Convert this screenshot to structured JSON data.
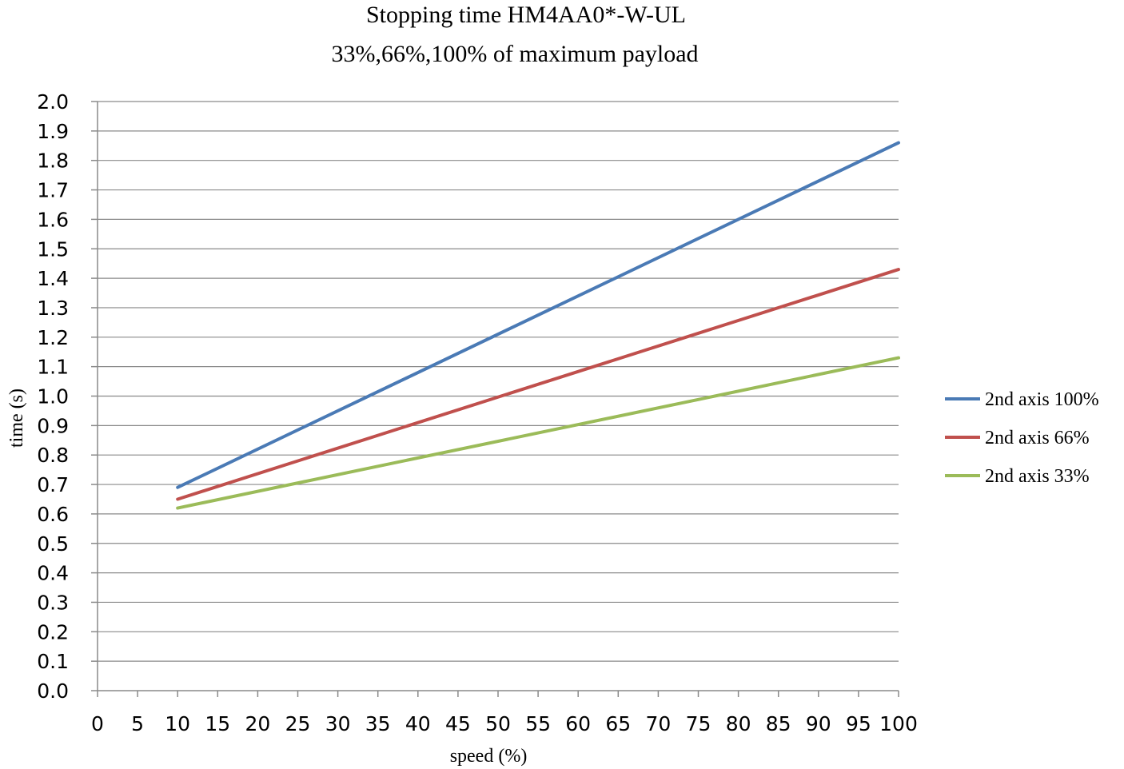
{
  "chart_data": {
    "type": "line",
    "title": "Stopping time HM4AA0*-W-UL",
    "subtitle": "33%,66%,100% of maximum payload",
    "xlabel": "speed (%)",
    "ylabel": "time (s)",
    "xlim": [
      0,
      100
    ],
    "ylim": [
      0.0,
      2.0
    ],
    "x_ticks": [
      "0",
      "5",
      "10",
      "15",
      "20",
      "25",
      "30",
      "35",
      "40",
      "45",
      "50",
      "55",
      "60",
      "65",
      "70",
      "75",
      "80",
      "85",
      "90",
      "95",
      "100"
    ],
    "y_ticks": [
      "0.0",
      "0.1",
      "0.2",
      "0.3",
      "0.4",
      "0.5",
      "0.6",
      "0.7",
      "0.8",
      "0.9",
      "1.0",
      "1.1",
      "1.2",
      "1.3",
      "1.4",
      "1.5",
      "1.6",
      "1.7",
      "1.8",
      "1.9",
      "2.0"
    ],
    "grid": "horizontal",
    "legend_position": "right",
    "series": [
      {
        "name": "2nd axis 100%",
        "color": "#4a7ab5",
        "x": [
          10,
          100
        ],
        "y": [
          0.69,
          1.86
        ]
      },
      {
        "name": "2nd axis 66%",
        "color": "#c0504d",
        "x": [
          10,
          100
        ],
        "y": [
          0.65,
          1.43
        ]
      },
      {
        "name": "2nd axis 33%",
        "color": "#9bbb59",
        "x": [
          10,
          100
        ],
        "y": [
          0.62,
          1.13
        ]
      }
    ]
  }
}
